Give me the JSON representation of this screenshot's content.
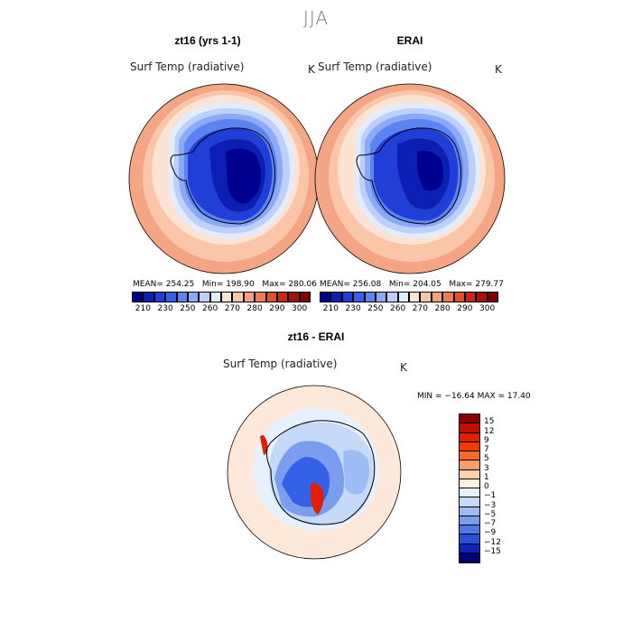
{
  "figure": {
    "season": "JJA",
    "left_panel": {
      "title": "zt16 (yrs 1-1)",
      "field": "Surf Temp (radiative)",
      "units": "K",
      "mean_label": "MEAN=",
      "mean": "254.25",
      "min_label": "Min=",
      "min": "198.90",
      "max_label": "Max=",
      "max": "280.06"
    },
    "right_panel": {
      "title": "ERAI",
      "field": "Surf Temp (radiative)",
      "units": "K",
      "mean_label": "MEAN=",
      "mean": "256.08",
      "min_label": "Min=",
      "min": "204.05",
      "max_label": "Max=",
      "max": "279.77"
    },
    "diff_panel": {
      "title": "zt16 - ERAI",
      "field": "Surf Temp (radiative)",
      "units": "K",
      "min_max": "MIN = −16.64 MAX =  17.40"
    }
  },
  "colorbar_top": {
    "labels": [
      "210",
      "230",
      "250",
      "260",
      "270",
      "280",
      "290",
      "300"
    ],
    "colors": [
      "#00008f",
      "#0b1fb3",
      "#1f3fd6",
      "#3560e8",
      "#5b84f0",
      "#8aaaf5",
      "#bcd0f9",
      "#e2ecfd",
      "#fde3d4",
      "#fbc6a8",
      "#f6a07e",
      "#ee7a56",
      "#e0512f",
      "#c72a14",
      "#a5100a",
      "#7f0000"
    ]
  },
  "colorbar_diff": {
    "labels": [
      "15",
      "12",
      "9",
      "7",
      "5",
      "3",
      "1",
      "0",
      "−1",
      "−3",
      "−5",
      "−7",
      "−9",
      "−12",
      "−15"
    ],
    "colors": [
      "#8a0000",
      "#c21000",
      "#e02000",
      "#f23a05",
      "#f86a2a",
      "#fb9d6a",
      "#fdd0b0",
      "#fff0e0",
      "#e7f0fd",
      "#c5daf9",
      "#9fbdf4",
      "#7a9df0",
      "#4f78e8",
      "#2a4fd9",
      "#0e24b8",
      "#00007a"
    ]
  },
  "colors": {
    "ocean_outer": "#f3a584",
    "ocean_mid": "#fbc6a8",
    "ocean_inner": "#fde3d4",
    "sea_ice_edge": "#e2ecfd",
    "ice_light": "#bcd0f9",
    "ice_mid": "#5b84f0",
    "ice_dark": "#1f3fd6",
    "plateau": "#0b1fb3",
    "plateau_core": "#00008f",
    "diff_neutral": "#fde8da",
    "diff_blue": "#3560e8",
    "diff_red": "#e02000"
  }
}
